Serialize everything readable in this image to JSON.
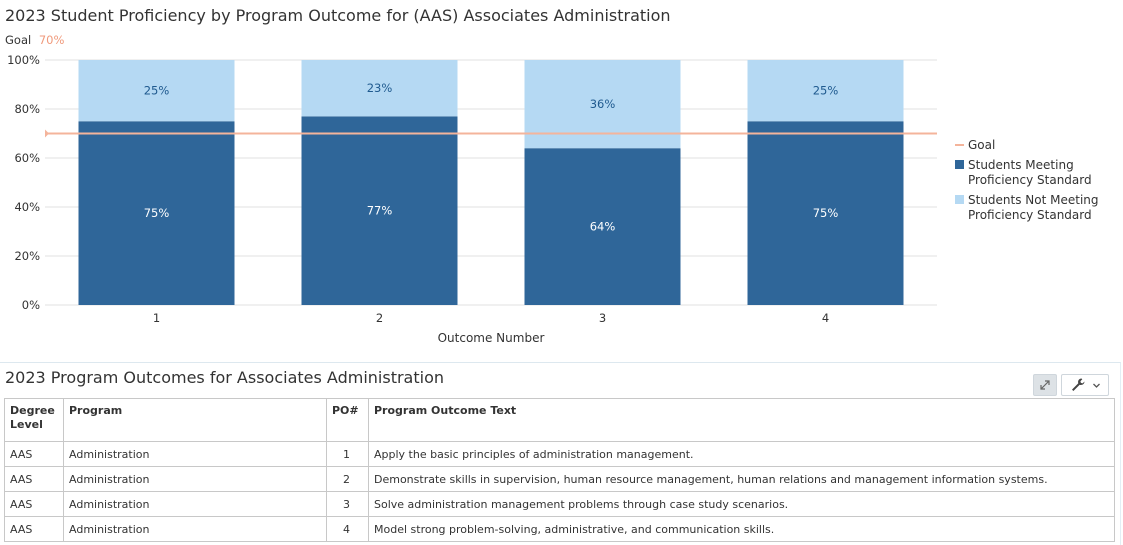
{
  "chart_title": "2023 Student Proficiency by Program Outcome for (AAS) Associates Administration",
  "goal_caption": {
    "label": "Goal",
    "value": "70%"
  },
  "colors": {
    "meeting": "#2f6699",
    "not_meeting": "#b5d9f3",
    "goal": "#f4b49b",
    "goal_text": "#f09a7c",
    "meeting_label": "#ffffff",
    "not_meeting_label": "#1f5a8f",
    "grid": "#e2e2e2"
  },
  "chart_data": {
    "type": "bar",
    "stacked": true,
    "categories": [
      "1",
      "2",
      "3",
      "4"
    ],
    "series": [
      {
        "name": "Students Meeting Proficiency Standard",
        "values": [
          75,
          77,
          64,
          75
        ]
      },
      {
        "name": "Students Not Meeting Proficiency Standard",
        "values": [
          25,
          23,
          36,
          25
        ]
      }
    ],
    "goal_line": {
      "name": "Goal",
      "value": 70
    },
    "title": "2023 Student Proficiency by Program Outcome for (AAS) Associates Administration",
    "xlabel": "Outcome Number",
    "ylabel": "",
    "ylim": [
      0,
      100
    ],
    "y_ticks": [
      "0%",
      "20%",
      "40%",
      "60%",
      "80%",
      "100%"
    ],
    "grid": true,
    "legend_position": "right",
    "legend": [
      {
        "name": "Goal",
        "lines": [
          "Goal"
        ],
        "kind": "line"
      },
      {
        "name": "Students Meeting Proficiency Standard",
        "lines": [
          "Students Meeting",
          "Proficiency Standard"
        ],
        "kind": "box"
      },
      {
        "name": "Students Not Meeting Proficiency Standard",
        "lines": [
          "Students Not Meeting",
          "Proficiency Standard"
        ],
        "kind": "box"
      }
    ]
  },
  "outcomes_table": {
    "title": "2023 Program Outcomes for Associates Administration",
    "headers": [
      "Degree Level",
      "Program",
      "PO#",
      "Program Outcome Text"
    ],
    "header_degree_lines": [
      "Degree",
      "Level"
    ],
    "rows": [
      [
        "AAS",
        "Administration",
        "1",
        "Apply the basic principles of administration management."
      ],
      [
        "AAS",
        "Administration",
        "2",
        "Demonstrate skills in supervision, human resource management, human relations and management information systems."
      ],
      [
        "AAS",
        "Administration",
        "3",
        "Solve administration management problems through case study scenarios."
      ],
      [
        "AAS",
        "Administration",
        "4",
        "Model strong problem-solving, administrative, and communication skills."
      ]
    ]
  },
  "icons": {
    "expand": "expand-icon",
    "settings": "wrench-icon",
    "dropdown": "chevron-down-icon"
  }
}
